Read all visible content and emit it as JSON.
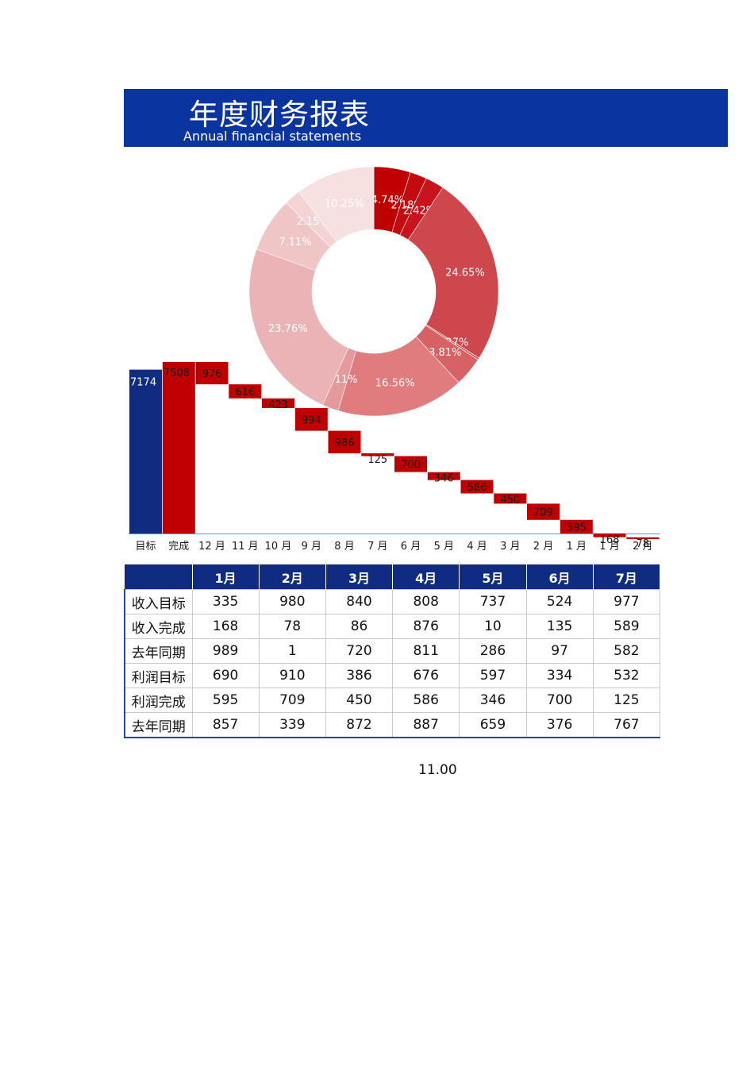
{
  "header": {
    "title": "年度财务报表",
    "subtitle": "Annual financial statements"
  },
  "colors": {
    "header_bg": "#0a34a0",
    "target_bar": "#0f2c82",
    "complete_bar": "#c00000",
    "step_bar": "#c00000",
    "table_head": "#0f2c82"
  },
  "chart_data": [
    {
      "type": "pie",
      "subtype": "donut",
      "title": "",
      "slices": [
        {
          "label": "4.74%",
          "value": 4.74,
          "color": "#c00000"
        },
        {
          "label": "2.18%",
          "value": 2.18,
          "color": "#c30a0f"
        },
        {
          "label": "2.42%",
          "value": 2.42,
          "color": "#c8141d"
        },
        {
          "label": "24.65%",
          "value": 24.65,
          "color": "#cd474c"
        },
        {
          "label": "0.27%",
          "value": 0.27,
          "color": "#d3595d"
        },
        {
          "label": "3.81%",
          "value": 3.81,
          "color": "#d66265"
        },
        {
          "label": "16.56%",
          "value": 16.56,
          "color": "#e07b7e"
        },
        {
          "label": "2.11%",
          "value": 2.11,
          "color": "#e6999b"
        },
        {
          "label": "23.76%",
          "value": 23.76,
          "color": "#ebb3b5"
        },
        {
          "label": "7.11%",
          "value": 7.11,
          "color": "#f0c5c6"
        },
        {
          "label": "2.15%",
          "value": 2.15,
          "color": "#f3d3d4"
        },
        {
          "label": "10.25%",
          "value": 10.25,
          "color": "#f6e0e0"
        }
      ]
    },
    {
      "type": "bar",
      "subtype": "waterfall",
      "categories": [
        "目标",
        "完成",
        "12 月",
        "11 月",
        "10 月",
        "9 月",
        "8 月",
        "7 月",
        "6 月",
        "5 月",
        "4 月",
        "3 月",
        "2 月",
        "1 月",
        "1 月",
        "2 月"
      ],
      "values": [
        7174,
        7508,
        976,
        616,
        423,
        994,
        986,
        125,
        700,
        346,
        586,
        450,
        709,
        595,
        168,
        78
      ],
      "kinds": [
        "total",
        "total",
        "step",
        "step",
        "step",
        "step",
        "step",
        "step",
        "step",
        "step",
        "step",
        "step",
        "step",
        "step",
        "step",
        "step"
      ],
      "ylim": [
        0,
        7508
      ]
    }
  ],
  "table": {
    "headers": [
      "",
      "1月",
      "2月",
      "3月",
      "4月",
      "5月",
      "6月",
      "7月"
    ],
    "rows": [
      {
        "label": "收入目标",
        "values": [
          "335",
          "980",
          "840",
          "808",
          "737",
          "524",
          "977"
        ]
      },
      {
        "label": "收入完成",
        "values": [
          "168",
          "78",
          "86",
          "876",
          "10",
          "135",
          "589"
        ]
      },
      {
        "label": "去年同期",
        "values": [
          "989",
          "1",
          "720",
          "811",
          "286",
          "97",
          "582"
        ]
      },
      {
        "label": "利润目标",
        "values": [
          "690",
          "910",
          "386",
          "676",
          "597",
          "334",
          "532"
        ]
      },
      {
        "label": "利润完成",
        "values": [
          "595",
          "709",
          "450",
          "586",
          "346",
          "700",
          "125"
        ]
      },
      {
        "label": "去年同期",
        "values": [
          "857",
          "339",
          "872",
          "887",
          "659",
          "376",
          "767"
        ]
      }
    ]
  },
  "footer": {
    "value": "11.00"
  }
}
